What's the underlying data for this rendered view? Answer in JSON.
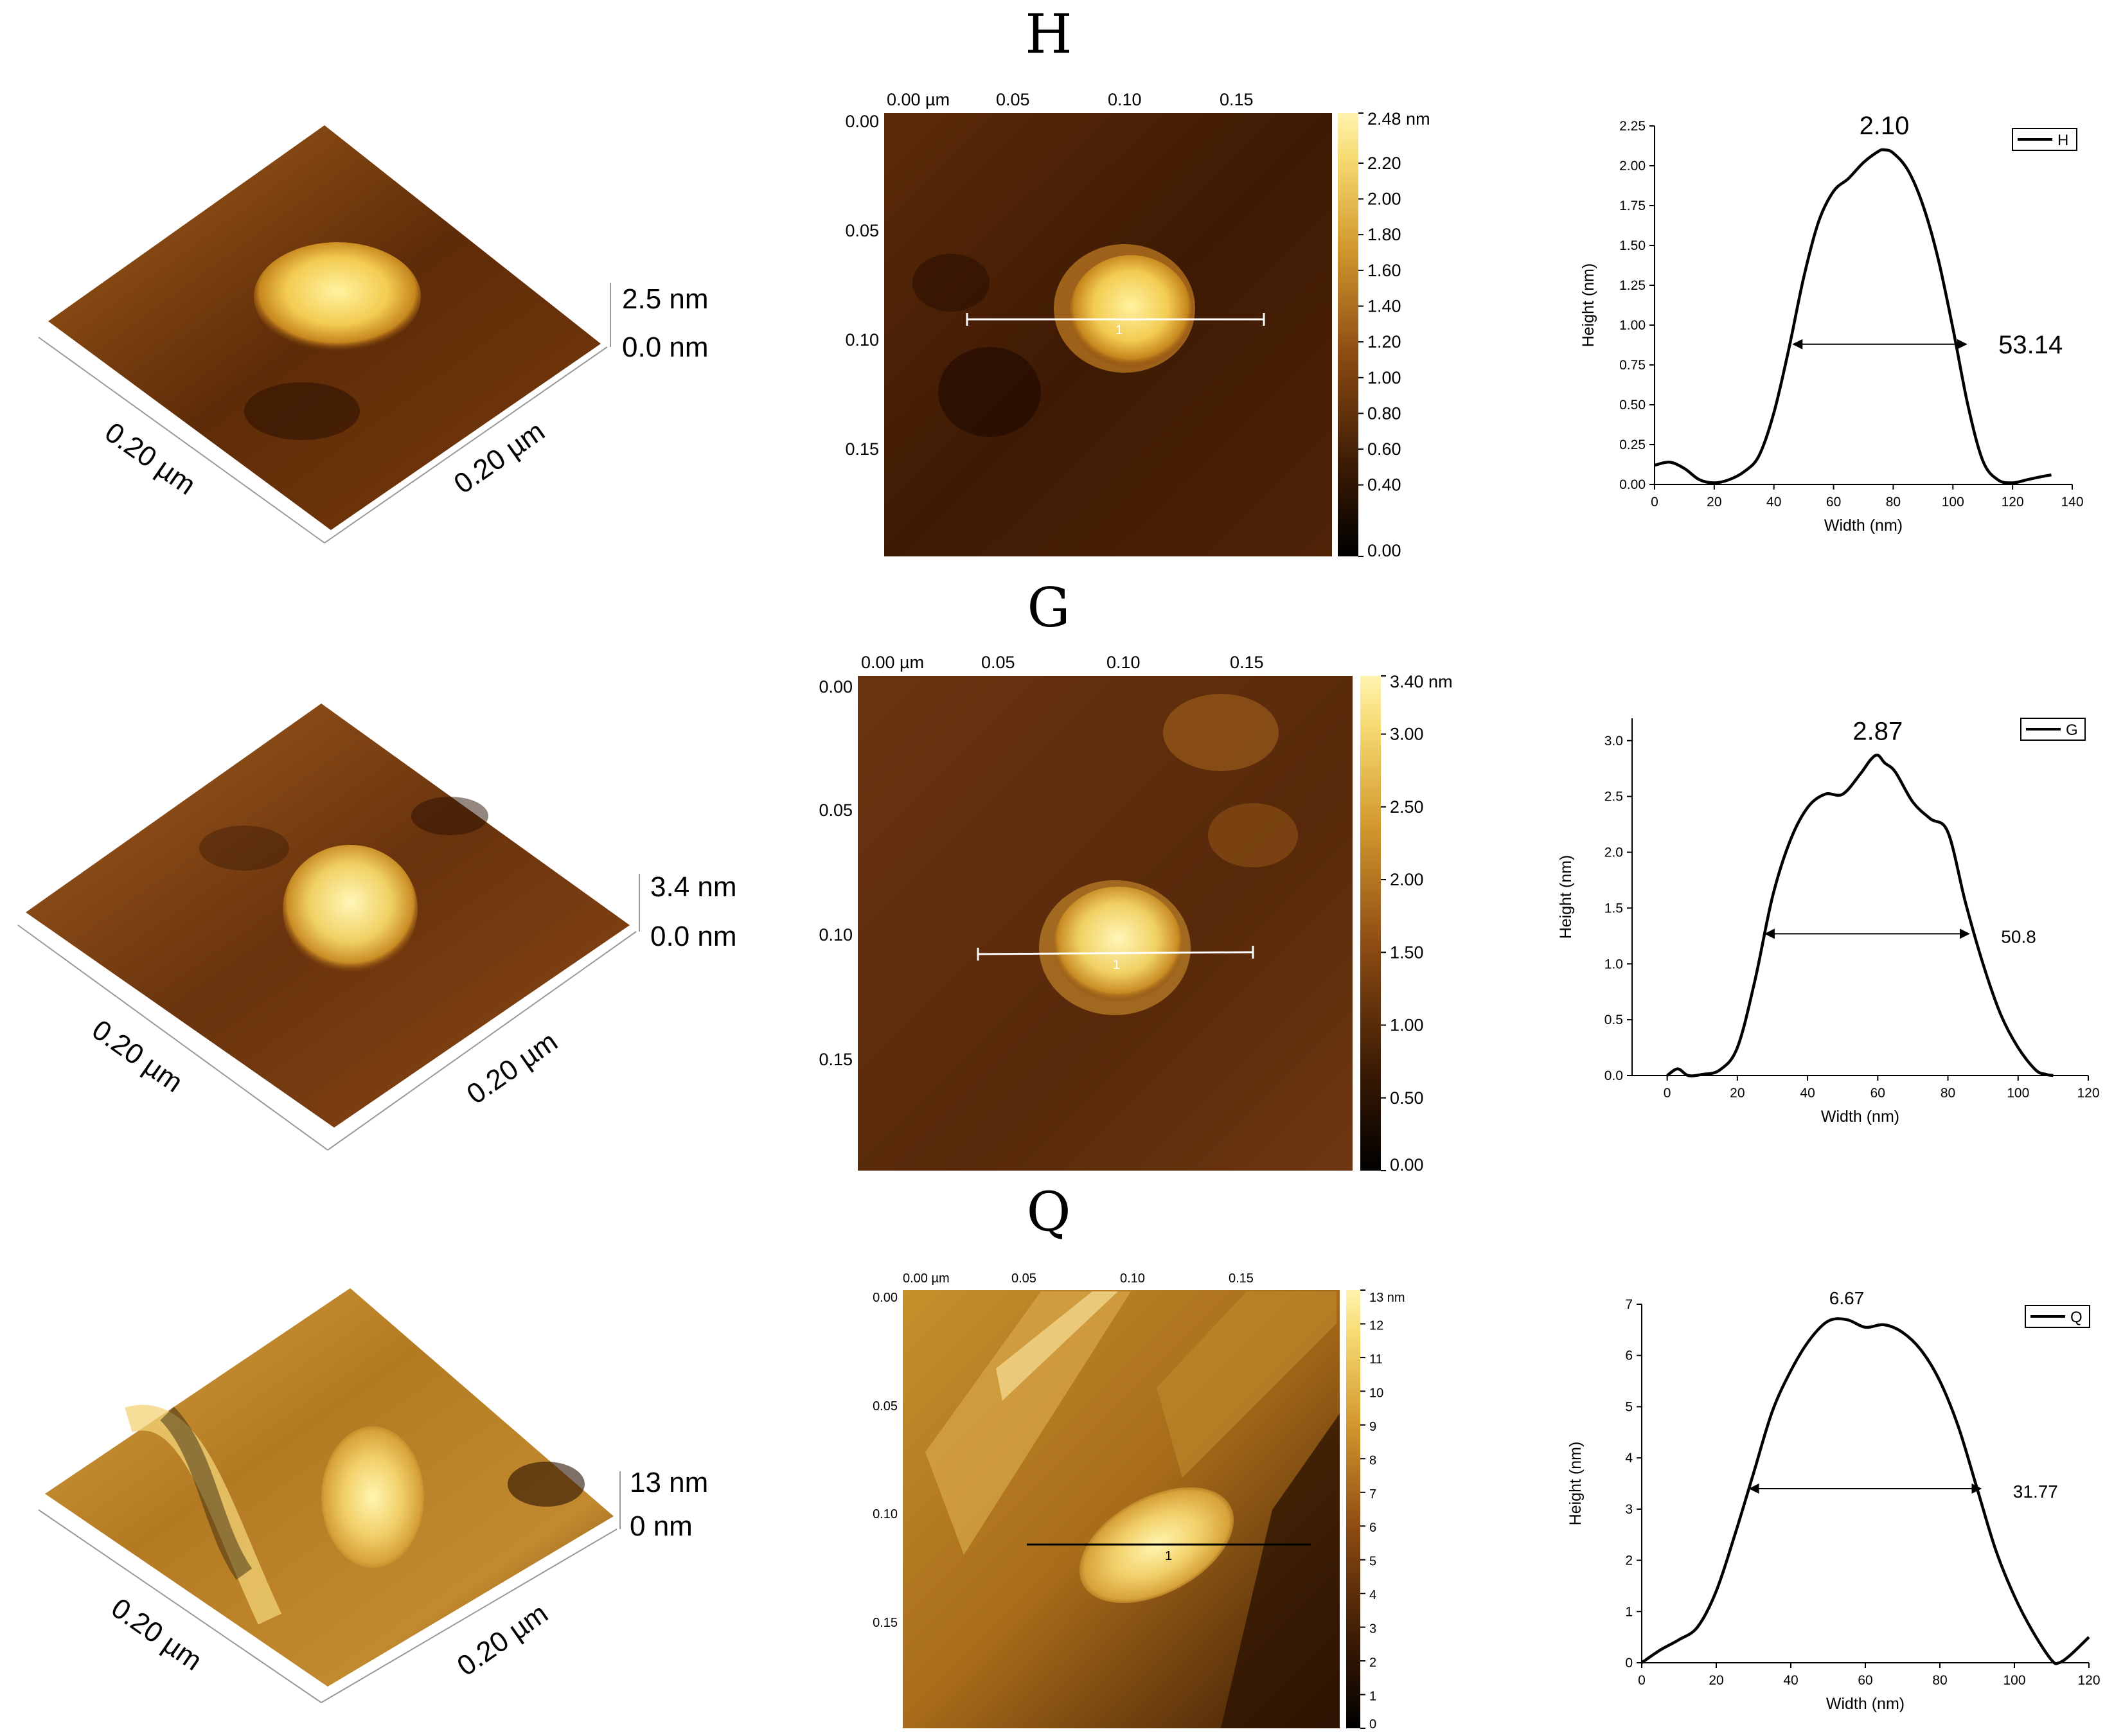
{
  "colors": {
    "dark": "#1c0900",
    "mid": "#8a4a12",
    "bright": "#d49a2c",
    "light": "#ffef90",
    "line": "#000000",
    "scanline": "#ffffff"
  },
  "chart_data": [
    {
      "id": "H",
      "type": "surface3d",
      "x_axis_label": "0.20 µm",
      "y_axis_label": "0.20 µm",
      "z_max_label": "2.5 nm",
      "z_min_label": "0.0 nm"
    },
    {
      "id": "H",
      "type": "heatmap",
      "title": "H",
      "x_ticks": [
        "0.00 µm",
        "0.05",
        "0.10",
        "0.15"
      ],
      "y_ticks": [
        "0.00",
        "0.05",
        "0.10",
        "0.15"
      ],
      "colorbar_ticks": [
        "2.48 nm",
        "2.20",
        "2.00",
        "1.80",
        "1.60",
        "1.40",
        "1.20",
        "1.00",
        "0.80",
        "0.60",
        "0.40",
        "0.00"
      ],
      "colorbar_range": [
        0,
        2.48
      ],
      "scan_line_label": "1"
    },
    {
      "id": "H",
      "type": "line",
      "series": [
        {
          "name": "H",
          "x": [
            0,
            5,
            10,
            15,
            20,
            25,
            30,
            35,
            40,
            45,
            50,
            55,
            60,
            65,
            70,
            75,
            77,
            80,
            85,
            90,
            95,
            100,
            105,
            110,
            115,
            120,
            125,
            130,
            133
          ],
          "y": [
            0.12,
            0.14,
            0.1,
            0.03,
            0.01,
            0.03,
            0.08,
            0.18,
            0.45,
            0.85,
            1.3,
            1.65,
            1.84,
            1.92,
            2.02,
            2.09,
            2.1,
            2.08,
            1.97,
            1.75,
            1.42,
            0.98,
            0.5,
            0.15,
            0.03,
            0.01,
            0.03,
            0.05,
            0.06
          ]
        }
      ],
      "peak_label": "2.10",
      "fwhm_label": "53.14",
      "fwhm_y": 0.88,
      "fwhm_x": [
        46.5,
        104.5
      ],
      "xlabel": "Width (nm)",
      "ylabel": "Height (nm)",
      "xlim": [
        0,
        140
      ],
      "ylim": [
        0,
        2.25
      ],
      "x_ticks": [
        0,
        20,
        40,
        60,
        80,
        100,
        120,
        140
      ],
      "y_ticks": [
        "0.00",
        "0.25",
        "0.50",
        "0.75",
        "1.00",
        "1.25",
        "1.50",
        "1.75",
        "2.00",
        "2.25"
      ],
      "legend": "top-right"
    },
    {
      "id": "G",
      "type": "surface3d",
      "x_axis_label": "0.20 µm",
      "y_axis_label": "0.20 µm",
      "z_max_label": "3.4 nm",
      "z_min_label": "0.0 nm"
    },
    {
      "id": "G",
      "type": "heatmap",
      "title": "G",
      "x_ticks": [
        "0.00 µm",
        "0.05",
        "0.10",
        "0.15"
      ],
      "y_ticks": [
        "0.00",
        "0.05",
        "0.10",
        "0.15"
      ],
      "colorbar_ticks": [
        "3.40 nm",
        "3.00",
        "2.50",
        "2.00",
        "1.50",
        "1.00",
        "0.50",
        "0.00"
      ],
      "colorbar_range": [
        0,
        3.4
      ],
      "scan_line_label": "1"
    },
    {
      "id": "G",
      "type": "line",
      "series": [
        {
          "name": "G",
          "x": [
            0,
            3,
            6,
            10,
            15,
            20,
            25,
            30,
            35,
            40,
            45,
            50,
            55,
            58,
            60,
            62,
            65,
            70,
            75,
            80,
            85,
            90,
            95,
            100,
            105,
            108,
            110
          ],
          "y": [
            0.0,
            0.06,
            0.0,
            0.01,
            0.05,
            0.25,
            0.85,
            1.6,
            2.1,
            2.4,
            2.52,
            2.52,
            2.7,
            2.83,
            2.87,
            2.8,
            2.72,
            2.45,
            2.3,
            2.18,
            1.55,
            1.0,
            0.55,
            0.25,
            0.05,
            0.01,
            0.0
          ]
        }
      ],
      "peak_label": "2.87",
      "fwhm_label": "50.8",
      "fwhm_y": 1.27,
      "fwhm_x": [
        28,
        86
      ],
      "xlabel": "Width (nm)",
      "ylabel": "Height (nm)",
      "xlim": [
        -10,
        120
      ],
      "ylim": [
        0,
        3.2
      ],
      "x_ticks": [
        0,
        20,
        40,
        60,
        80,
        100,
        120
      ],
      "y_ticks": [
        "0.0",
        "0.5",
        "1.0",
        "1.5",
        "2.0",
        "2.5",
        "3.0"
      ],
      "legend": "top-right"
    },
    {
      "id": "Q",
      "type": "surface3d",
      "x_axis_label": "0.20 µm",
      "y_axis_label": "0.20 µm",
      "z_max_label": "13 nm",
      "z_min_label": "0 nm"
    },
    {
      "id": "Q",
      "type": "heatmap",
      "title": "Q",
      "x_ticks": [
        "0.00 µm",
        "0.05",
        "0.10",
        "0.15"
      ],
      "y_ticks": [
        "0.00",
        "0.05",
        "0.10",
        "0.15"
      ],
      "colorbar_ticks": [
        "13 nm",
        "12",
        "11",
        "10",
        "9",
        "8",
        "7",
        "6",
        "5",
        "4",
        "3",
        "2",
        "1",
        "0"
      ],
      "colorbar_range": [
        0,
        13
      ],
      "scan_line_label": "1"
    },
    {
      "id": "Q",
      "type": "line",
      "series": [
        {
          "name": "Q",
          "x": [
            0,
            5,
            10,
            15,
            20,
            25,
            30,
            35,
            40,
            45,
            50,
            55,
            60,
            65,
            70,
            75,
            80,
            85,
            90,
            95,
            100,
            105,
            110,
            112,
            115,
            120
          ],
          "y": [
            0.0,
            0.25,
            0.45,
            0.7,
            1.4,
            2.5,
            3.7,
            4.9,
            5.7,
            6.3,
            6.67,
            6.7,
            6.55,
            6.6,
            6.45,
            6.1,
            5.5,
            4.6,
            3.4,
            2.2,
            1.3,
            0.6,
            0.05,
            0.0,
            0.15,
            0.5
          ]
        }
      ],
      "peak_label": "6.67",
      "fwhm_label": "31.77",
      "fwhm_y": 3.4,
      "fwhm_x": [
        29,
        91
      ],
      "xlabel": "Width (nm)",
      "ylabel": "Height (nm)",
      "xlim": [
        0,
        120
      ],
      "ylim": [
        0,
        7
      ],
      "x_ticks": [
        0,
        20,
        40,
        60,
        80,
        100,
        120
      ],
      "y_ticks": [
        "0",
        "1",
        "2",
        "3",
        "4",
        "5",
        "6",
        "7"
      ],
      "legend": "top-right"
    }
  ]
}
